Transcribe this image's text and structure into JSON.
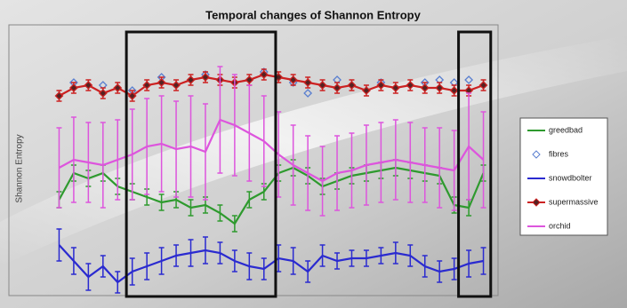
{
  "chart_data": {
    "type": "line",
    "title": "Temporal changes of Shannon Entropy",
    "ylabel": "Shannon Entropy",
    "x": [
      1,
      2,
      3,
      4,
      5,
      6,
      7,
      8,
      9,
      10,
      11,
      12,
      13,
      14,
      15,
      16,
      17,
      18,
      19,
      20,
      21,
      22,
      23,
      24,
      25,
      26,
      27,
      28,
      29,
      30
    ],
    "xlim": [
      0,
      31
    ],
    "ylim": [
      0,
      1
    ],
    "legend": "right",
    "highlights": [
      [
        5.6,
        15.8
      ],
      [
        28.3,
        30.5
      ]
    ],
    "series": [
      {
        "name": "greedbad",
        "color": "#2e9a2e",
        "style": "line",
        "values": [
          0.35,
          0.45,
          0.43,
          0.45,
          0.4,
          0.38,
          0.36,
          0.34,
          0.35,
          0.32,
          0.33,
          0.3,
          0.26,
          0.35,
          0.38,
          0.45,
          0.47,
          0.44,
          0.4,
          0.42,
          0.44,
          0.45,
          0.46,
          0.47,
          0.46,
          0.45,
          0.44,
          0.33,
          0.32,
          0.45
        ],
        "errors": [
          0.03,
          0.03,
          0.03,
          0.03,
          0.03,
          0.03,
          0.03,
          0.03,
          0.03,
          0.03,
          0.03,
          0.03,
          0.03,
          0.03,
          0.03,
          0.03,
          0.03,
          0.03,
          0.03,
          0.03,
          0.03,
          0.03,
          0.03,
          0.03,
          0.03,
          0.03,
          0.03,
          0.03,
          0.03,
          0.03
        ]
      },
      {
        "name": "fibres",
        "color": "#5a7fd0",
        "style": "points",
        "values": [
          null,
          0.79,
          null,
          0.78,
          null,
          0.76,
          null,
          0.81,
          null,
          null,
          0.82,
          null,
          null,
          null,
          0.83,
          null,
          0.79,
          0.75,
          null,
          0.8,
          null,
          null,
          0.79,
          null,
          null,
          0.79,
          0.8,
          0.79,
          0.8,
          null
        ]
      },
      {
        "name": "snowdbolter",
        "color": "#2a2ad0",
        "style": "line",
        "values": [
          0.18,
          0.12,
          0.06,
          0.1,
          0.04,
          0.08,
          0.1,
          0.12,
          0.14,
          0.15,
          0.16,
          0.15,
          0.12,
          0.1,
          0.09,
          0.13,
          0.12,
          0.08,
          0.14,
          0.12,
          0.13,
          0.13,
          0.14,
          0.15,
          0.14,
          0.1,
          0.08,
          0.09,
          0.11,
          0.12
        ],
        "errors": [
          0.06,
          0.05,
          0.05,
          0.04,
          0.04,
          0.05,
          0.05,
          0.05,
          0.04,
          0.05,
          0.05,
          0.04,
          0.04,
          0.05,
          0.04,
          0.05,
          0.05,
          0.04,
          0.04,
          0.03,
          0.03,
          0.03,
          0.03,
          0.04,
          0.04,
          0.04,
          0.04,
          0.04,
          0.05,
          0.05
        ]
      },
      {
        "name": "supermassive",
        "color": "#cc2222",
        "style": "line-marker",
        "values": [
          0.74,
          0.77,
          0.78,
          0.75,
          0.77,
          0.74,
          0.78,
          0.79,
          0.78,
          0.8,
          0.81,
          0.8,
          0.79,
          0.8,
          0.82,
          0.81,
          0.8,
          0.79,
          0.78,
          0.77,
          0.78,
          0.76,
          0.78,
          0.77,
          0.78,
          0.77,
          0.77,
          0.76,
          0.76,
          0.78
        ],
        "errors": [
          0.02,
          0.02,
          0.02,
          0.02,
          0.02,
          0.02,
          0.02,
          0.02,
          0.02,
          0.02,
          0.02,
          0.02,
          0.02,
          0.02,
          0.02,
          0.02,
          0.02,
          0.02,
          0.02,
          0.02,
          0.02,
          0.02,
          0.02,
          0.02,
          0.02,
          0.02,
          0.02,
          0.02,
          0.02,
          0.02
        ]
      },
      {
        "name": "orchid",
        "color": "#dd55dd",
        "style": "line",
        "values": [
          0.47,
          0.5,
          0.49,
          0.48,
          0.5,
          0.52,
          0.55,
          0.56,
          0.54,
          0.55,
          0.53,
          0.65,
          0.63,
          0.6,
          0.57,
          0.52,
          0.48,
          0.45,
          0.42,
          0.45,
          0.46,
          0.48,
          0.49,
          0.5,
          0.49,
          0.48,
          0.47,
          0.46,
          0.55,
          0.5
        ],
        "errors": [
          0.15,
          0.16,
          0.15,
          0.16,
          0.15,
          0.17,
          0.18,
          0.18,
          0.18,
          0.19,
          0.18,
          0.2,
          0.19,
          0.18,
          0.17,
          0.16,
          0.15,
          0.14,
          0.13,
          0.14,
          0.14,
          0.15,
          0.15,
          0.15,
          0.15,
          0.14,
          0.15,
          0.15,
          0.2,
          0.18
        ]
      }
    ]
  }
}
